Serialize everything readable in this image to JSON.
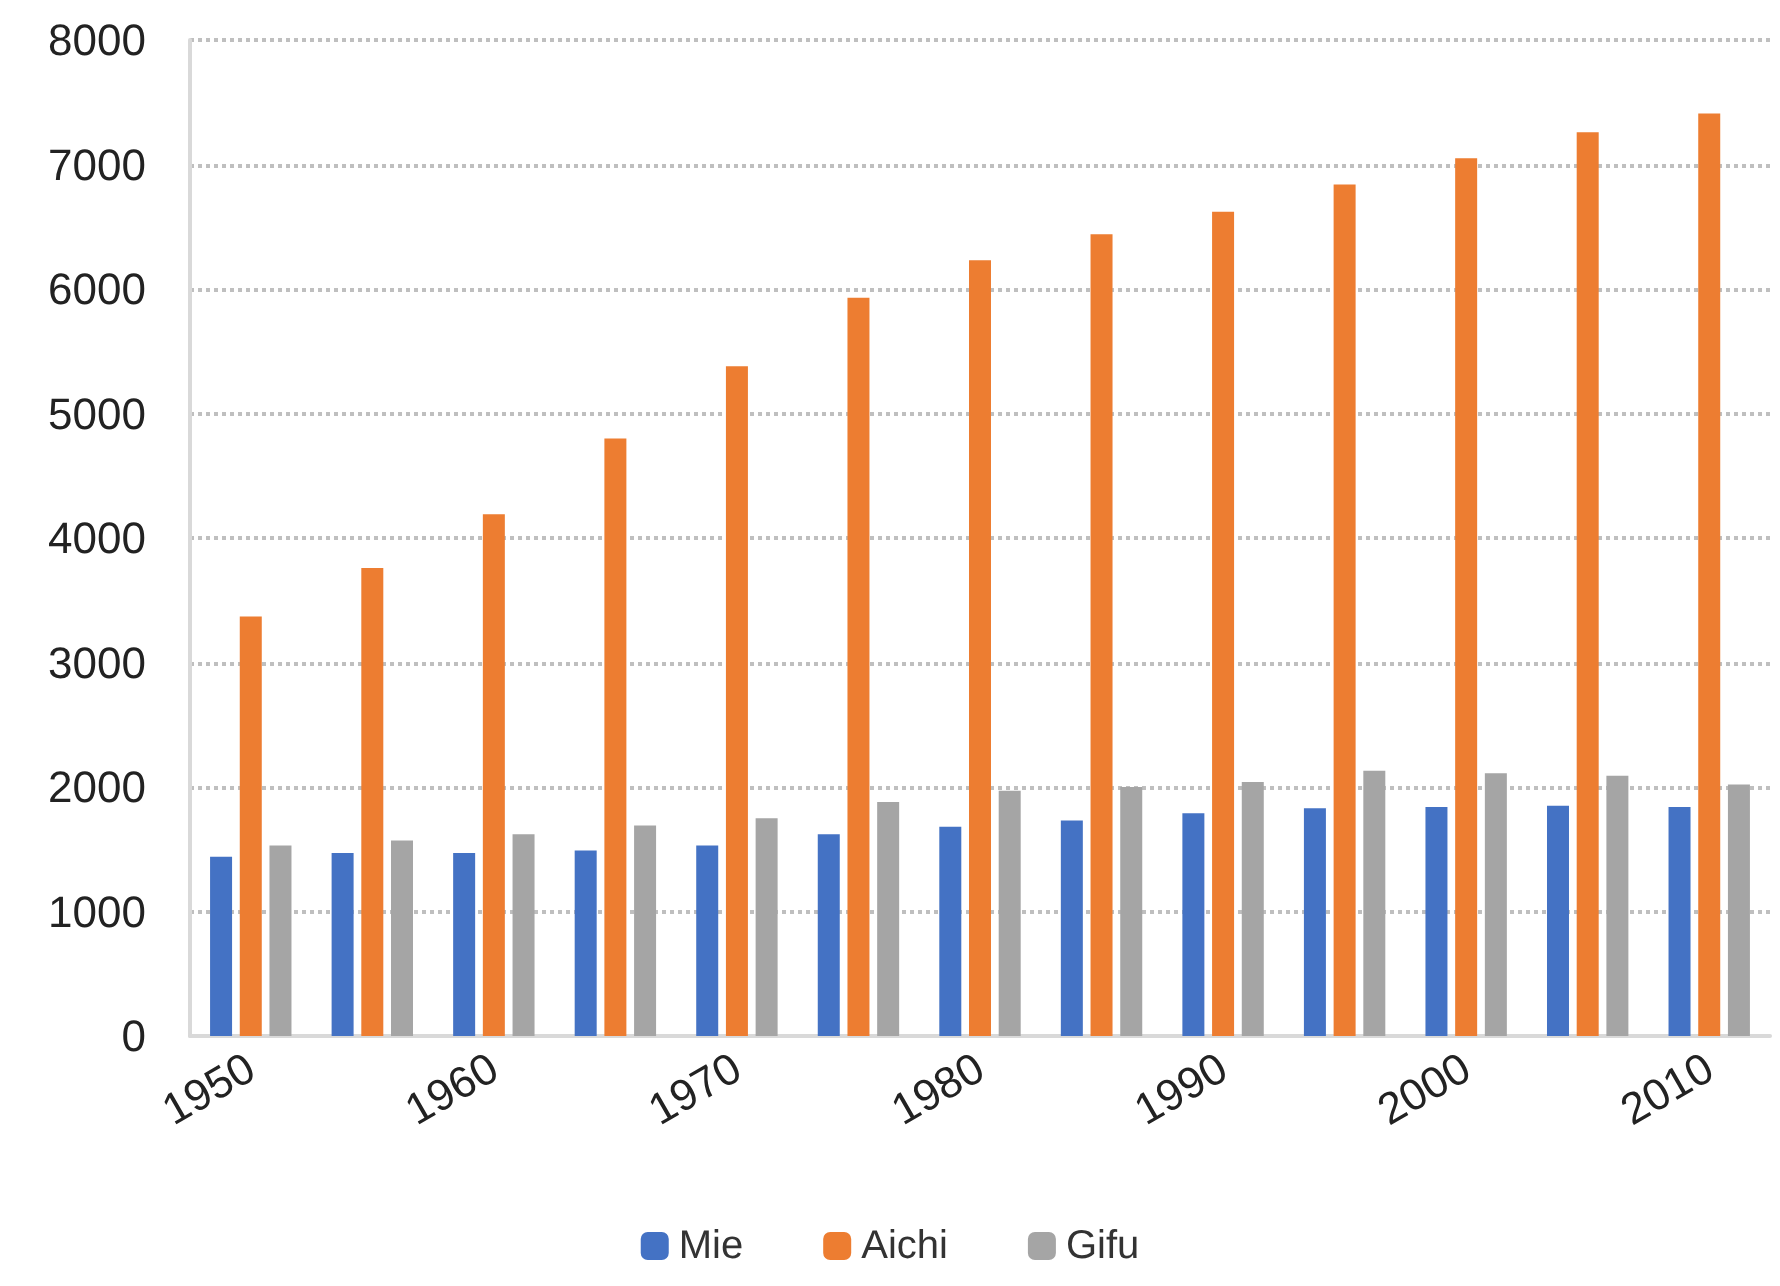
{
  "chart_data": {
    "type": "bar",
    "categories": [
      "1950",
      null,
      "1960",
      null,
      "1970",
      null,
      "1980",
      null,
      "1990",
      null,
      "2000",
      null,
      "2010"
    ],
    "series": [
      {
        "name": "Mie",
        "color": "#4472c4",
        "values": [
          1440,
          1470,
          1470,
          1490,
          1530,
          1620,
          1680,
          1730,
          1790,
          1830,
          1840,
          1850,
          1840
        ]
      },
      {
        "name": "Aichi",
        "color": "#ed7d31",
        "values": [
          3370,
          3760,
          4190,
          4800,
          5380,
          5930,
          6230,
          6440,
          6620,
          6840,
          7050,
          7260,
          7410
        ]
      },
      {
        "name": "Gifu",
        "color": "#a5a5a5",
        "values": [
          1530,
          1570,
          1620,
          1690,
          1750,
          1880,
          1970,
          2000,
          2040,
          2130,
          2110,
          2090,
          2020
        ]
      }
    ],
    "ylim": [
      0,
      8000
    ],
    "yticks": [
      0,
      1000,
      2000,
      3000,
      4000,
      5000,
      6000,
      7000,
      8000
    ],
    "grid": "y",
    "legend": "bottom"
  }
}
